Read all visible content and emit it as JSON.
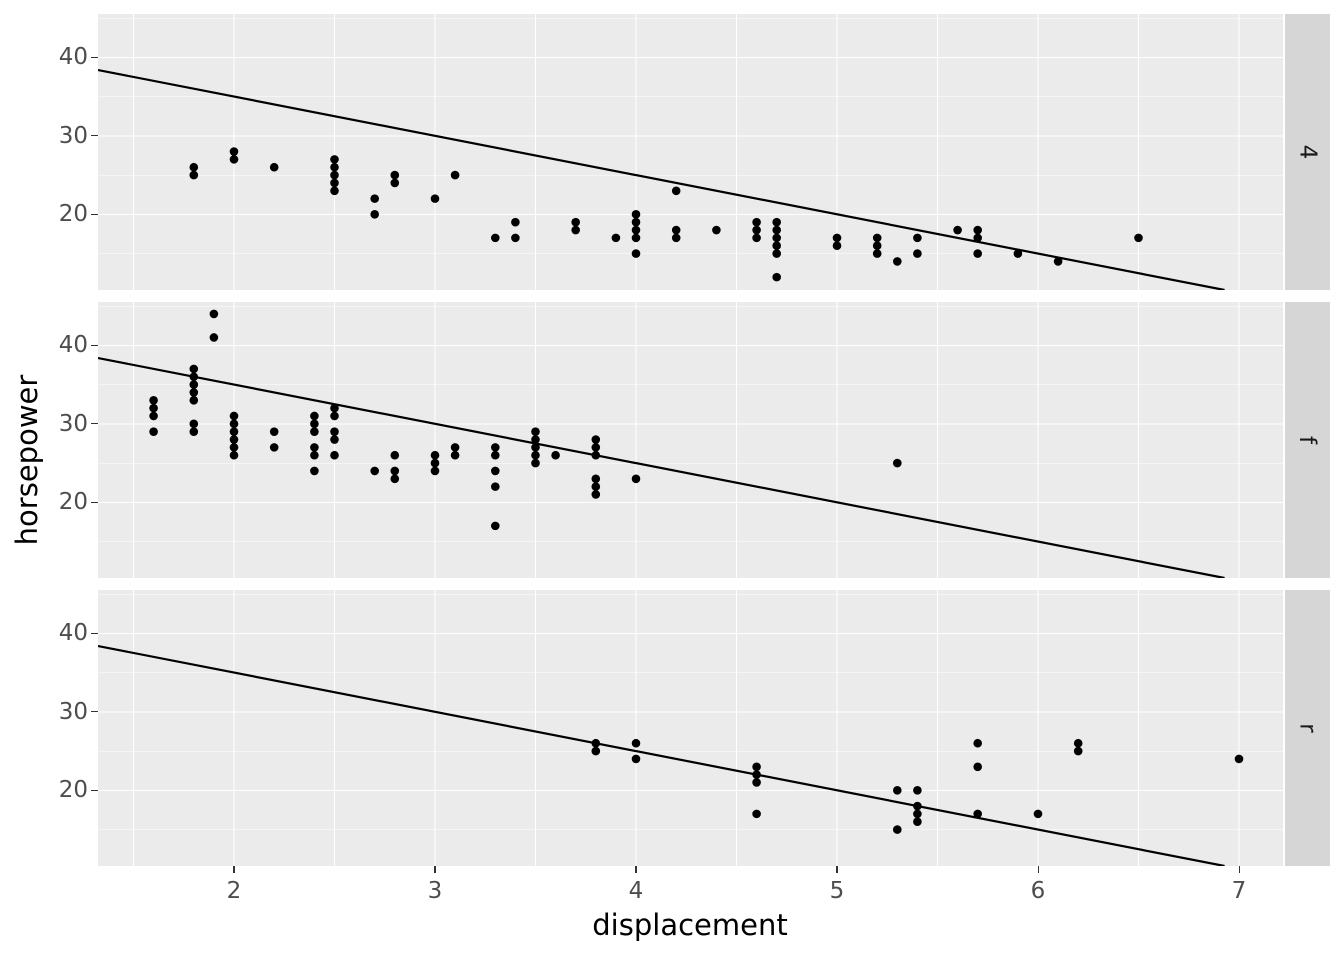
{
  "chart_data": {
    "type": "scatter",
    "title": "",
    "xlabel": "displacement",
    "ylabel": "horsepower",
    "grid": true,
    "legend": "none",
    "x_range": [
      1.3234,
      7.2189
    ],
    "y_range": [
      10.36,
      45.52
    ],
    "x_major_ticks": [
      2,
      3,
      4,
      5,
      6,
      7
    ],
    "x_tick_labels": [
      "2",
      "3",
      "4",
      "5",
      "6",
      "7"
    ],
    "x_minor_gridlines": [
      1.5,
      2.5,
      3.5,
      4.5,
      5.5,
      6.5
    ],
    "y_major_gridlines": [
      20,
      30,
      40
    ],
    "y_tick_labels": [
      "20",
      "30",
      "40"
    ],
    "y_minor_gridlines": [
      15,
      25,
      35,
      45
    ],
    "abline": {
      "intercept": 45,
      "slope": -5
    },
    "facets": [
      {
        "label": "4",
        "points": [
          [
            1.8,
            25
          ],
          [
            1.8,
            26
          ],
          [
            2.0,
            27
          ],
          [
            2.0,
            28
          ],
          [
            2.2,
            26
          ],
          [
            2.5,
            23
          ],
          [
            2.5,
            24
          ],
          [
            2.5,
            25
          ],
          [
            2.5,
            26
          ],
          [
            2.5,
            27
          ],
          [
            2.7,
            20
          ],
          [
            2.7,
            22
          ],
          [
            2.8,
            24
          ],
          [
            2.8,
            25
          ],
          [
            3.0,
            22
          ],
          [
            3.1,
            25
          ],
          [
            3.3,
            17
          ],
          [
            3.4,
            17
          ],
          [
            3.4,
            19
          ],
          [
            3.7,
            18
          ],
          [
            3.7,
            19
          ],
          [
            3.9,
            17
          ],
          [
            4.0,
            15
          ],
          [
            4.0,
            17
          ],
          [
            4.0,
            18
          ],
          [
            4.0,
            19
          ],
          [
            4.0,
            20
          ],
          [
            4.2,
            17
          ],
          [
            4.2,
            18
          ],
          [
            4.2,
            23
          ],
          [
            4.4,
            18
          ],
          [
            4.6,
            17
          ],
          [
            4.6,
            18
          ],
          [
            4.6,
            19
          ],
          [
            4.7,
            12
          ],
          [
            4.7,
            15
          ],
          [
            4.7,
            16
          ],
          [
            4.7,
            17
          ],
          [
            4.7,
            18
          ],
          [
            4.7,
            19
          ],
          [
            5.0,
            16
          ],
          [
            5.0,
            17
          ],
          [
            5.2,
            15
          ],
          [
            5.2,
            16
          ],
          [
            5.2,
            17
          ],
          [
            5.3,
            14
          ],
          [
            5.4,
            15
          ],
          [
            5.4,
            17
          ],
          [
            5.6,
            18
          ],
          [
            5.7,
            15
          ],
          [
            5.7,
            17
          ],
          [
            5.7,
            18
          ],
          [
            5.9,
            15
          ],
          [
            6.1,
            14
          ],
          [
            6.5,
            17
          ]
        ]
      },
      {
        "label": "f",
        "points": [
          [
            1.6,
            29
          ],
          [
            1.6,
            31
          ],
          [
            1.6,
            32
          ],
          [
            1.6,
            33
          ],
          [
            1.8,
            29
          ],
          [
            1.8,
            30
          ],
          [
            1.8,
            33
          ],
          [
            1.8,
            34
          ],
          [
            1.8,
            35
          ],
          [
            1.8,
            36
          ],
          [
            1.8,
            37
          ],
          [
            1.9,
            41
          ],
          [
            1.9,
            44
          ],
          [
            2.0,
            26
          ],
          [
            2.0,
            27
          ],
          [
            2.0,
            28
          ],
          [
            2.0,
            29
          ],
          [
            2.0,
            30
          ],
          [
            2.0,
            31
          ],
          [
            2.2,
            27
          ],
          [
            2.2,
            29
          ],
          [
            2.4,
            24
          ],
          [
            2.4,
            26
          ],
          [
            2.4,
            27
          ],
          [
            2.4,
            29
          ],
          [
            2.4,
            30
          ],
          [
            2.4,
            31
          ],
          [
            2.5,
            26
          ],
          [
            2.5,
            28
          ],
          [
            2.5,
            29
          ],
          [
            2.5,
            31
          ],
          [
            2.5,
            32
          ],
          [
            2.7,
            24
          ],
          [
            2.8,
            23
          ],
          [
            2.8,
            24
          ],
          [
            2.8,
            26
          ],
          [
            3.0,
            24
          ],
          [
            3.0,
            25
          ],
          [
            3.0,
            26
          ],
          [
            3.1,
            26
          ],
          [
            3.1,
            27
          ],
          [
            3.3,
            17
          ],
          [
            3.3,
            22
          ],
          [
            3.3,
            24
          ],
          [
            3.3,
            26
          ],
          [
            3.3,
            27
          ],
          [
            3.5,
            25
          ],
          [
            3.5,
            26
          ],
          [
            3.5,
            27
          ],
          [
            3.5,
            28
          ],
          [
            3.5,
            29
          ],
          [
            3.6,
            26
          ],
          [
            3.8,
            21
          ],
          [
            3.8,
            22
          ],
          [
            3.8,
            23
          ],
          [
            3.8,
            26
          ],
          [
            3.8,
            27
          ],
          [
            3.8,
            28
          ],
          [
            4.0,
            23
          ],
          [
            5.3,
            25
          ]
        ]
      },
      {
        "label": "r",
        "points": [
          [
            3.8,
            25
          ],
          [
            3.8,
            26
          ],
          [
            4.0,
            24
          ],
          [
            4.0,
            26
          ],
          [
            4.6,
            17
          ],
          [
            4.6,
            21
          ],
          [
            4.6,
            22
          ],
          [
            4.6,
            23
          ],
          [
            5.3,
            15
          ],
          [
            5.3,
            20
          ],
          [
            5.4,
            16
          ],
          [
            5.4,
            17
          ],
          [
            5.4,
            18
          ],
          [
            5.4,
            20
          ],
          [
            5.7,
            17
          ],
          [
            5.7,
            23
          ],
          [
            5.7,
            26
          ],
          [
            6.0,
            17
          ],
          [
            6.2,
            25
          ],
          [
            6.2,
            26
          ],
          [
            7.0,
            24
          ]
        ]
      }
    ]
  },
  "colors": {
    "figure_background": "#FFFFFF",
    "panel_background": "#EBEBEB",
    "strip_background": "#D6D6D6",
    "gridline": "#FFFFFF",
    "point": "#000000",
    "line": "#000000",
    "tick_mark": "#333333",
    "tick_label": "#4D4D4D",
    "axis_title": "#000000",
    "strip_label": "#1A1A1A"
  }
}
